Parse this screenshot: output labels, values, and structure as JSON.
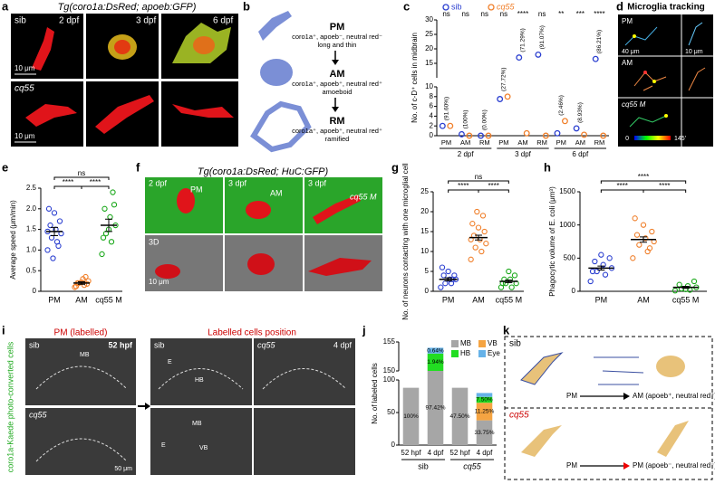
{
  "figure": {
    "panel_labels": [
      "a",
      "b",
      "c",
      "d",
      "e",
      "f",
      "g",
      "h",
      "i",
      "j",
      "k"
    ],
    "a": {
      "title": "Tg(coro1a:DsRed; apoeb:GFP)",
      "row_labels": [
        "sib",
        "cq55"
      ],
      "times": [
        "2 dpf",
        "3 dpf",
        "6 dpf"
      ],
      "scale_bars": [
        "10 μm",
        "10 μm"
      ]
    },
    "b": {
      "stages": [
        {
          "name": "PM",
          "markers": "coro1a⁺, apoeb⁻, neutral red⁻",
          "shape": "long and thin"
        },
        {
          "name": "AM",
          "markers": "coro1a⁺, apoeb⁺, neutral red⁺",
          "shape": "amoeboid"
        },
        {
          "name": "RM",
          "markers": "coro1a⁺, apoeb⁺, neutral red⁺",
          "shape": "ramified"
        }
      ]
    },
    "d": {
      "title": "Microglia tracking",
      "row_labels": [
        "PM",
        "AM",
        "cq55 M"
      ],
      "scale_bars": [
        "40 μm",
        "10 μm"
      ],
      "colorbar": [
        "0",
        "145'"
      ]
    },
    "f": {
      "title": "Tg(coro1a:DsRed; HuC:GFP)",
      "times": [
        "2 dpf",
        "3 dpf",
        "3 dpf"
      ],
      "cells": [
        "PM",
        "AM",
        "cq55 M"
      ],
      "view": "3D",
      "scale_bar": "10 μm"
    },
    "i": {
      "left_title": "PM (labelled)",
      "right_title": "Labelled cells position",
      "side_label": "coro1a-Kaede photo-converted cells",
      "left_rows": [
        "sib",
        "cq55"
      ],
      "left_time": "52 hpf",
      "right_cols": [
        "sib",
        "cq55"
      ],
      "right_time": "4 dpf",
      "regions": [
        "MB",
        "HB",
        "E",
        "MB",
        "E",
        "VB"
      ],
      "scale_bar": "50 μm"
    },
    "k": {
      "rows": [
        "sib",
        "cq55"
      ],
      "sib_from": "PM",
      "sib_to": "AM (apoeb⁺, neutral red⁺)",
      "cq55_from": "PM",
      "cq55_to": "PM (apoeb⁻, neutral red⁻)"
    }
  },
  "chart_data": [
    {
      "type": "broken_dot",
      "ylabel": "No. of c-D⁺ cells in midbrain",
      "categories": [
        "PM",
        "AM",
        "RM",
        "PM",
        "AM",
        "RM",
        "PM",
        "AM",
        "RM"
      ],
      "groups": [
        "2 dpf",
        "3 dpf",
        "6 dpf"
      ],
      "series": [
        {
          "name": "sib",
          "color": "#2b3fd0",
          "values": [
            2,
            0.3,
            0,
            7.5,
            17,
            18,
            0.5,
            1.5,
            16.5
          ]
        },
        {
          "name": "cq55",
          "color": "#f07f2a",
          "values": [
            2,
            0,
            0,
            8,
            0.5,
            0,
            3,
            0.2,
            0
          ]
        }
      ],
      "ylim_lower": [
        0,
        10
      ],
      "yticks_lower": [
        0,
        2,
        4,
        6,
        8,
        10
      ],
      "ylim_upper": [
        10,
        30
      ],
      "yticks_upper": [
        15,
        20,
        25,
        30
      ],
      "percent_labels": [
        "(91.60%)",
        "(100%)",
        "(0.00%)",
        "(27.72%)",
        "(71.29%)",
        "(91.07%)",
        "(2.46%)",
        "(8.93%)",
        "(86.21%)"
      ],
      "significance": [
        "ns",
        "ns",
        "ns",
        "ns",
        "****",
        "ns",
        "**",
        "***",
        "****"
      ]
    },
    {
      "type": "dot",
      "ylabel": "Average speed (μm/min)",
      "categories": [
        "PM",
        "AM",
        "cq55 M"
      ],
      "colors": [
        "#2b3fd0",
        "#f07f2a",
        "#1aa81a"
      ],
      "values": [
        1.45,
        0.2,
        1.6
      ],
      "errors": [
        0.1,
        0.03,
        0.15
      ],
      "points": [
        [
          1.0,
          1.2,
          1.3,
          1.4,
          1.5,
          1.6,
          1.7,
          1.9,
          2.0,
          1.1,
          0.8,
          1.45
        ],
        [
          0.1,
          0.15,
          0.2,
          0.25,
          0.3,
          0.2,
          0.18,
          0.22,
          0.12,
          0.35
        ],
        [
          0.9,
          1.2,
          1.4,
          1.6,
          1.8,
          2.0,
          2.1,
          1.5,
          1.3,
          2.4
        ]
      ],
      "ylim": [
        0,
        2.5
      ],
      "yticks": [
        0,
        0.5,
        {
          "value": 1,
          "label": "1.0"
        },
        1.5,
        {
          "value": 2,
          "label": "2.0"
        },
        2.5
      ],
      "significance": [
        "****",
        "****",
        "ns"
      ]
    },
    {
      "type": "dot",
      "ylabel": "No. of neurons contacting with one microglial cell",
      "categories": [
        "PM",
        "AM",
        "cq55 M"
      ],
      "colors": [
        "#2b3fd0",
        "#f07f2a",
        "#1aa81a"
      ],
      "values": [
        3,
        13.5,
        2.5
      ],
      "errors": [
        0.4,
        0.6,
        0.3
      ],
      "points": [
        [
          1,
          2,
          2,
          3,
          3,
          4,
          4,
          5,
          6,
          3
        ],
        [
          8,
          10,
          11,
          12,
          13,
          14,
          15,
          16,
          17,
          19,
          20,
          13
        ],
        [
          1,
          1,
          2,
          2,
          3,
          3,
          4,
          5,
          2
        ]
      ],
      "ylim": [
        0,
        25
      ],
      "yticks": [
        0,
        5,
        10,
        15,
        20,
        25
      ],
      "significance": [
        "****",
        "****",
        "ns"
      ]
    },
    {
      "type": "dot",
      "ylabel": "Phagocytic volume of E. coli (μm³)",
      "categories": [
        "PM",
        "AM",
        "cq55 M"
      ],
      "colors": [
        "#2b3fd0",
        "#f07f2a",
        "#1aa81a"
      ],
      "values": [
        350,
        780,
        60
      ],
      "errors": [
        30,
        40,
        15
      ],
      "points": [
        [
          150,
          250,
          300,
          350,
          400,
          450,
          500,
          550,
          300
        ],
        [
          500,
          600,
          700,
          750,
          800,
          850,
          900,
          1000,
          1100,
          650
        ],
        [
          10,
          20,
          40,
          60,
          80,
          100,
          150,
          30
        ]
      ],
      "ylim": [
        0,
        1500
      ],
      "yticks": [
        0,
        500,
        1000,
        1500
      ],
      "significance": [
        "****",
        "****",
        "****"
      ]
    },
    {
      "type": "broken_stacked_bar",
      "ylabel": "No. of labeled cells",
      "categories": [
        "52 hpf",
        "4 dpf",
        "52 hpf",
        "4 dpf"
      ],
      "groups": [
        "sib",
        "cq55"
      ],
      "series": [
        {
          "name": "MB",
          "color": "#a6a6a6",
          "values": [
            88,
            150,
            88,
            38
          ]
        },
        {
          "name": "VB",
          "color": "#f5a442",
          "values": [
            0,
            0,
            0,
            27
          ]
        },
        {
          "name": "HB",
          "color": "#22dd22",
          "values": [
            0,
            3,
            0,
            9
          ]
        },
        {
          "name": "Eye",
          "color": "#66b2e8",
          "values": [
            0,
            1,
            0,
            6
          ]
        }
      ],
      "ylim_lower": [
        0,
        100
      ],
      "yticks_lower": [
        0,
        50,
        100
      ],
      "ylim_upper": [
        150,
        155
      ],
      "yticks_upper": [
        150,
        155
      ],
      "segment_labels": [
        "100%",
        "97.42%",
        "1.94%",
        "0.64%",
        "47.50%",
        "33.75%",
        "11.25%",
        "7.50%"
      ]
    }
  ]
}
